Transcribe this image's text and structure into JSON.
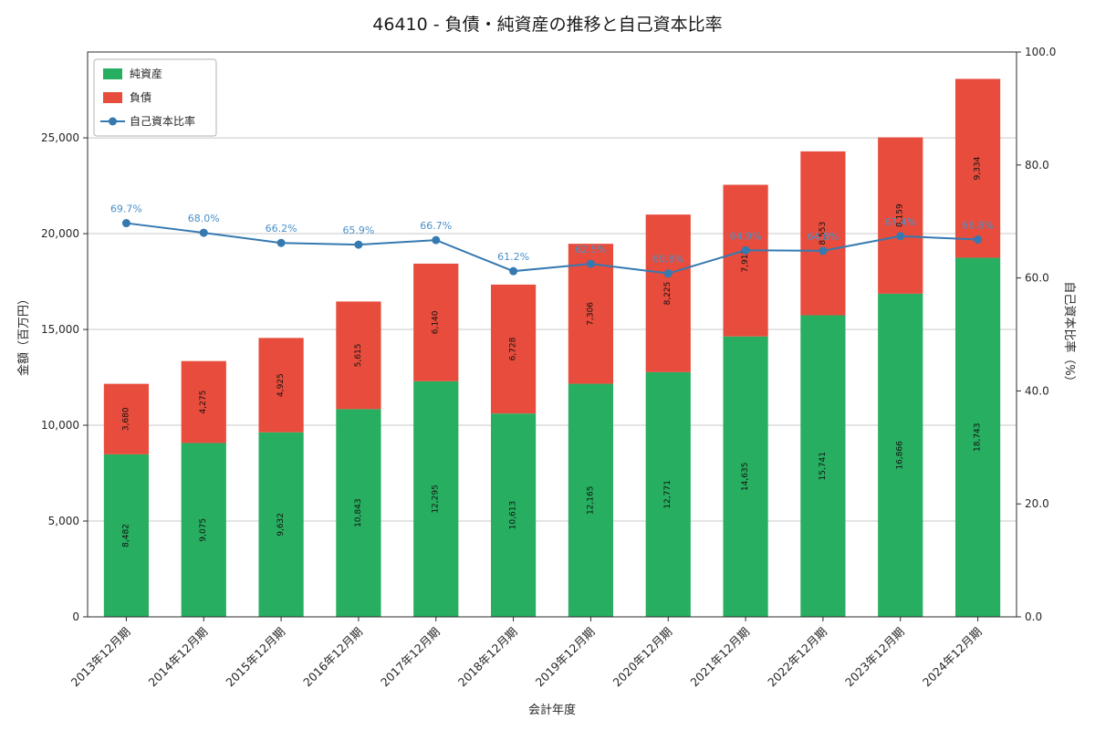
{
  "chart": {
    "title": "46410 - 負債・純資産の推移と自己資本比率",
    "xlabel": "会計年度",
    "ylabel_left": "金額（百万円）",
    "ylabel_right": "自己資本比率（%）"
  },
  "chart_data": {
    "type": "bar",
    "stacked": true,
    "grid": true,
    "legend_position": "upper left",
    "categories": [
      "2013年12月期",
      "2014年12月期",
      "2015年12月期",
      "2016年12月期",
      "2017年12月期",
      "2018年12月期",
      "2019年12月期",
      "2020年12月期",
      "2021年12月期",
      "2022年12月期",
      "2023年12月期",
      "2024年12月期"
    ],
    "series": [
      {
        "name": "純資産",
        "type": "bar",
        "color": "#27ae60",
        "values": [
          8482,
          9075,
          9632,
          10843,
          12295,
          10613,
          12165,
          12771,
          14635,
          15741,
          16866,
          18743
        ]
      },
      {
        "name": "負債",
        "type": "bar",
        "color": "#e74c3c",
        "values": [
          3680,
          4275,
          4925,
          5615,
          6140,
          6728,
          7306,
          8225,
          7915,
          8553,
          8159,
          9334
        ]
      },
      {
        "name": "自己資本比率",
        "type": "line",
        "axis": "right",
        "color": "#3579b1",
        "label_color": "#4a90c9",
        "values": [
          69.7,
          68.0,
          66.2,
          65.9,
          66.7,
          61.2,
          62.5,
          60.8,
          64.9,
          64.8,
          67.4,
          66.8
        ],
        "labels": [
          "69.7%",
          "68.0%",
          "66.2%",
          "65.9%",
          "66.7%",
          "61.2%",
          "62.5%",
          "60.8%",
          "64.9%",
          "64.8%",
          "67.4%",
          "66.8%"
        ]
      }
    ],
    "ylim_left": [
      0,
      29480
    ],
    "yticks_left": [
      0,
      5000,
      10000,
      15000,
      20000,
      25000
    ],
    "ylim_right": [
      0,
      100
    ],
    "yticks_right": [
      0,
      20,
      40,
      60,
      80,
      100
    ],
    "ytick_right_labels": [
      "0.0",
      "20.0",
      "40.0",
      "60.0",
      "80.0",
      "100.0"
    ],
    "colors": {
      "grid": "#c8c8c8",
      "spine": "#2b2b2b",
      "tick_text": "#262626",
      "bar_label": "#111111"
    }
  }
}
